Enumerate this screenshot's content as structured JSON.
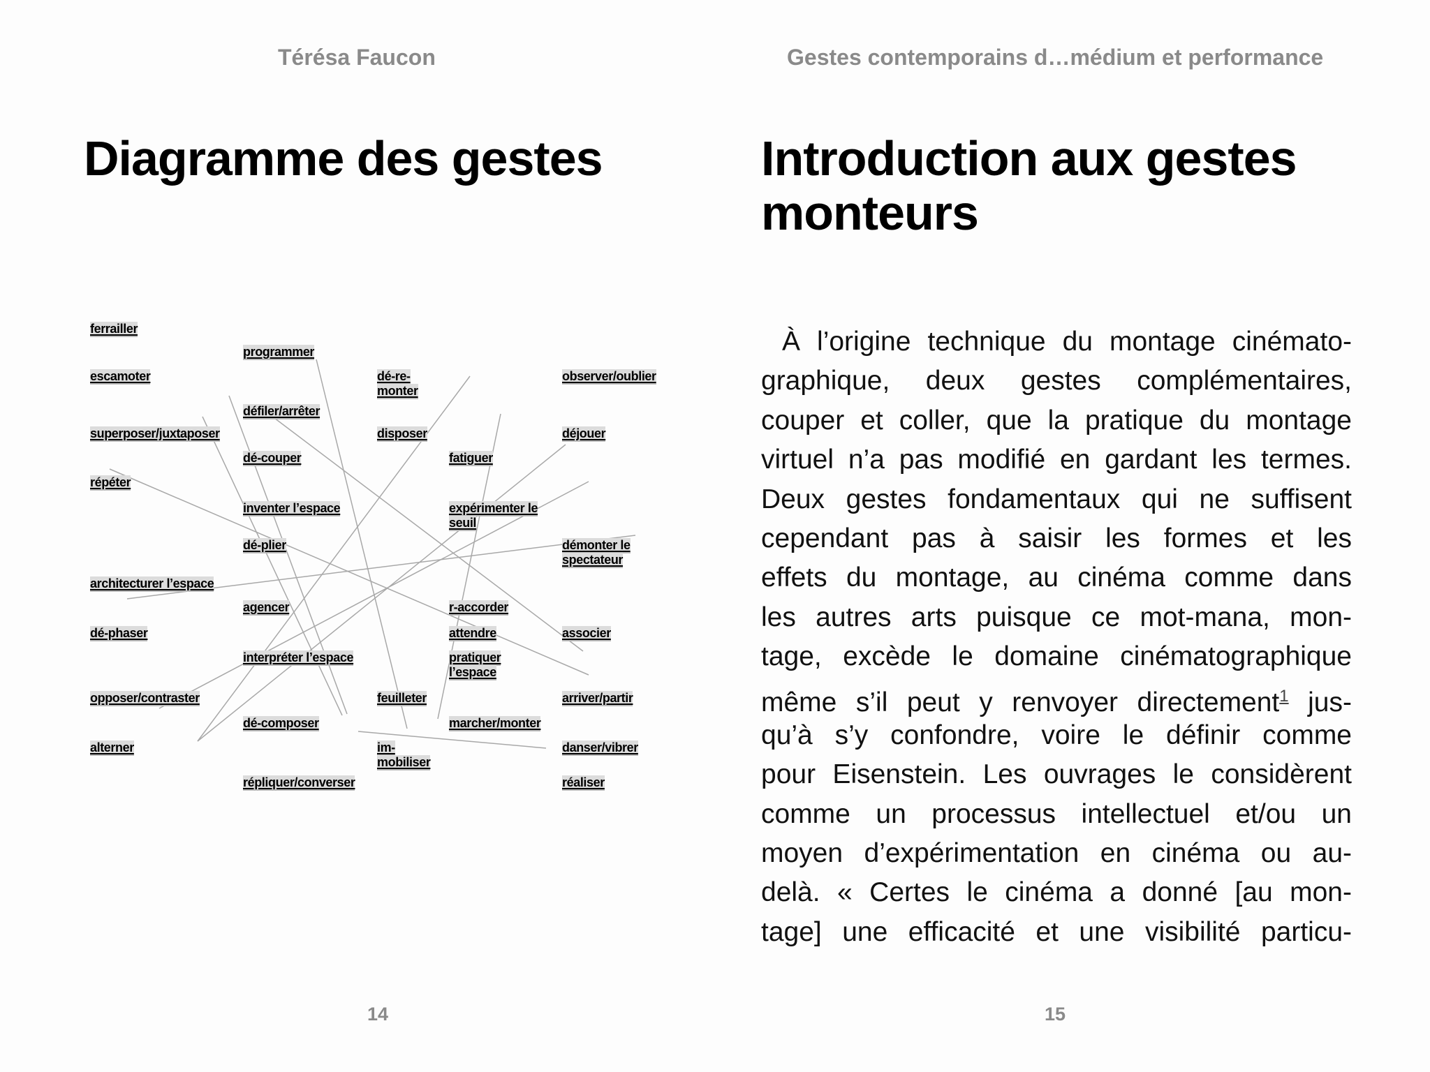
{
  "left_page": {
    "header": "Térésa Faucon",
    "title": "Diagramme des gestes",
    "page_number": "14",
    "diagram": {
      "labels": [
        {
          "id": "ferrailler",
          "text": "ferrailler",
          "col": 0,
          "row": 0
        },
        {
          "id": "escamoter",
          "text": "escamoter",
          "col": 0,
          "row": 2
        },
        {
          "id": "superposer",
          "text": "superposer/juxtaposer",
          "col": 0,
          "row": 4
        },
        {
          "id": "repeter",
          "text": "répéter",
          "col": 0,
          "row": 6
        },
        {
          "id": "architecturer",
          "text": "architecturer l’espace",
          "col": 0,
          "row": 10
        },
        {
          "id": "dephaser",
          "text": "dé-phaser",
          "col": 0,
          "row": 12
        },
        {
          "id": "opposer",
          "text": "opposer/contraster",
          "col": 0,
          "row": 14
        },
        {
          "id": "alterner",
          "text": "alterner",
          "col": 0,
          "row": 16
        },
        {
          "id": "programmer",
          "text": "programmer",
          "col": 1,
          "row": 1
        },
        {
          "id": "defiler",
          "text": "défiler/arrêter",
          "col": 1,
          "row": 3
        },
        {
          "id": "decouper",
          "text": "dé-couper",
          "col": 1,
          "row": 5
        },
        {
          "id": "inventer",
          "text": "inventer l’espace",
          "col": 1,
          "row": 7
        },
        {
          "id": "deplier",
          "text": "dé-plier",
          "col": 1,
          "row": 9
        },
        {
          "id": "agencer",
          "text": "agencer",
          "col": 1,
          "row": 11
        },
        {
          "id": "interpreter",
          "text": "interpréter l’espace",
          "col": 1,
          "row": 13
        },
        {
          "id": "decomposer",
          "text": "dé-composer",
          "col": 1,
          "row": 15
        },
        {
          "id": "repliquer",
          "text": "répliquer/converser",
          "col": 1,
          "row": 17
        },
        {
          "id": "deremonter",
          "text": "dé-re-\nmonter",
          "col": 2,
          "row": 2
        },
        {
          "id": "disposer",
          "text": "disposer",
          "col": 2,
          "row": 4
        },
        {
          "id": "feuilleter",
          "text": "feuilleter",
          "col": 2,
          "row": 14
        },
        {
          "id": "immobiliser",
          "text": "im-\nmobiliser",
          "col": 2,
          "row": 16
        },
        {
          "id": "fatiguer",
          "text": "fatiguer",
          "col": 3,
          "row": 5
        },
        {
          "id": "experimenter",
          "text": "expérimenter le\nseuil",
          "col": 3,
          "row": 7
        },
        {
          "id": "raccorder",
          "text": "r-accorder",
          "col": 3,
          "row": 11
        },
        {
          "id": "attendre",
          "text": "attendre",
          "col": 3,
          "row": 12
        },
        {
          "id": "pratiquer",
          "text": "pratiquer\nl’espace",
          "col": 3,
          "row": 13
        },
        {
          "id": "marcher",
          "text": "marcher/monter",
          "col": 3,
          "row": 15
        },
        {
          "id": "observer",
          "text": "observer/oublier",
          "col": 4,
          "row": 2
        },
        {
          "id": "dejouer",
          "text": "déjouer",
          "col": 4,
          "row": 4
        },
        {
          "id": "demonter",
          "text": "démonter le\nspectateur",
          "col": 4,
          "row": 9
        },
        {
          "id": "associer",
          "text": "associer",
          "col": 4,
          "row": 12
        },
        {
          "id": "arriver",
          "text": "arriver/partir",
          "col": 4,
          "row": 14
        },
        {
          "id": "danser",
          "text": "danser/vibrer",
          "col": 4,
          "row": 16
        },
        {
          "id": "realiser",
          "text": "réaliser",
          "col": 4,
          "row": 17
        }
      ],
      "line_color": "#a8a8a8",
      "label_bg": "#dcdcdc"
    }
  },
  "right_page": {
    "header": "Gestes contemporains d…médium et performance",
    "title_lines": [
      "Introduction aux gestes",
      "monteurs"
    ],
    "page_number": "15",
    "paragraph_lines": [
      "À l’origine technique du montage cinémato-",
      "graphique, deux gestes complémentaires,",
      "couper et coller, que la pratique du montage",
      "virtuel n’a pas modifié en gardant les termes.",
      "Deux gestes fondamentaux qui ne suffisent",
      "cependant pas à saisir les formes et les",
      "effets du montage, au cinéma comme dans",
      "les autres arts puisque ce mot-mana, mon-",
      "tage, excède le domaine cinématographique",
      "même s’il peut y renvoyer directement",
      "qu’à s’y confondre, voire le définir comme",
      "pour Eisenstein. Les ouvrages le considèrent",
      "comme un processus intellectuel et/ou un",
      "moyen d’expérimentation en cinéma ou au-",
      "delà. « Certes le cinéma a donné [au mon-",
      "tage] une efficacité et une visibilité particu-"
    ],
    "footnote_ref": "1",
    "line10_tail": " jus-"
  }
}
